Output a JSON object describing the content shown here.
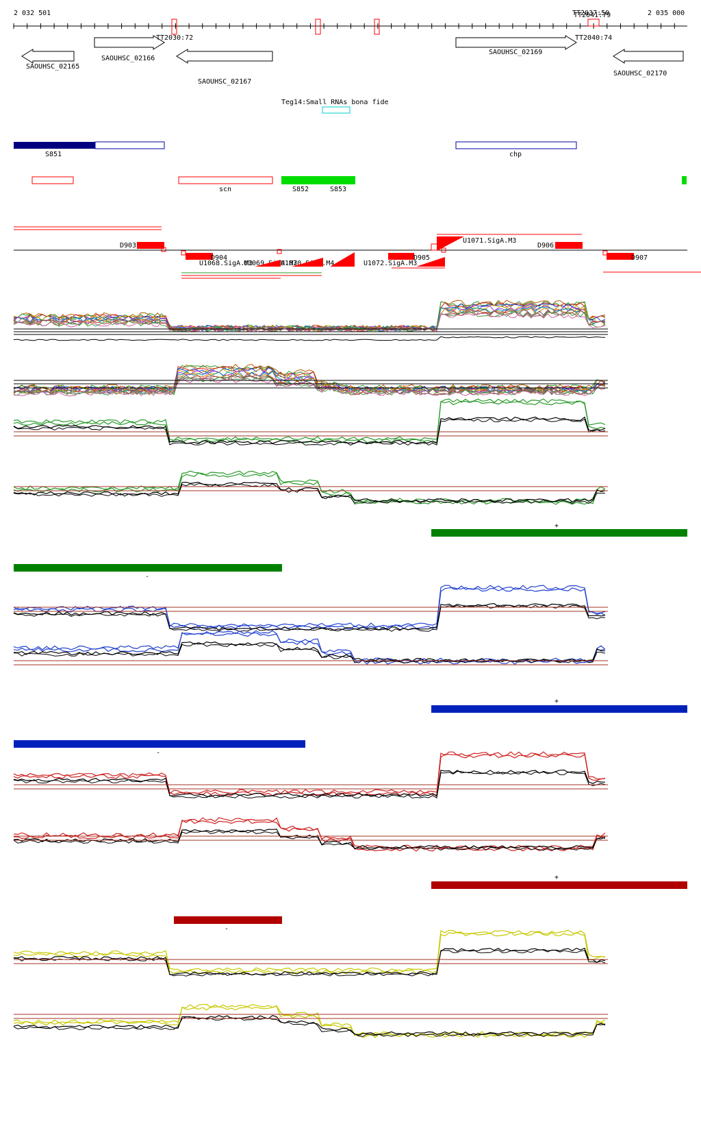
{
  "ruler": {
    "start_label": "2 032 501",
    "end_label": "2 035 000",
    "terminators": [
      "TT2030:72",
      "TT2040:74",
      "TT2037:50",
      "TT2041:79"
    ]
  },
  "genes": [
    {
      "name": "SAOUHSC_02165",
      "strand": "-"
    },
    {
      "name": "SAOUHSC_02166",
      "strand": "+"
    },
    {
      "name": "SAOUHSC_02167",
      "strand": "-"
    },
    {
      "name": "SAOUHSC_02169",
      "strand": "+"
    },
    {
      "name": "SAOUHSC_02170",
      "strand": "-"
    }
  ],
  "small_rna": {
    "label": "Teg14:Small RNAs bona fide"
  },
  "segments": {
    "s851": "S851",
    "chp": "chp",
    "scn": "scn",
    "s852": "S852",
    "s853": "S853"
  },
  "features": {
    "d903": "D903",
    "d904": "D904",
    "d905": "D905",
    "d906": "D906",
    "d907": "D907",
    "u1068": "U1068.SigA.M3",
    "u1069": "U1069.SigA.M3",
    "u1070": "U1070.SigA.M4",
    "u1071": "U1071.SigA.M3",
    "u1072": "U1072.SigA.M3"
  },
  "strand_labels": {
    "plus": "+",
    "minus": "-"
  },
  "colors": {
    "navy": "#000080",
    "blue_outline": "#0000aa",
    "red": "#ff0000",
    "green_bar": "#008000",
    "bright_green": "#00dd00",
    "blue_bar": "#0022bb",
    "dark_red_bar": "#b00000",
    "yellow_line": "#c8c800",
    "cyan": "#00cccc",
    "brown_ref": "#a03020"
  },
  "track_groups": [
    {
      "name": "multi",
      "line_color": "multi"
    },
    {
      "name": "green",
      "line_color": "#2a9a2a"
    },
    {
      "name": "blue",
      "line_color": "#2040d0"
    },
    {
      "name": "red",
      "line_color": "#d02020"
    },
    {
      "name": "yellow",
      "line_color": "#c8c800"
    }
  ]
}
